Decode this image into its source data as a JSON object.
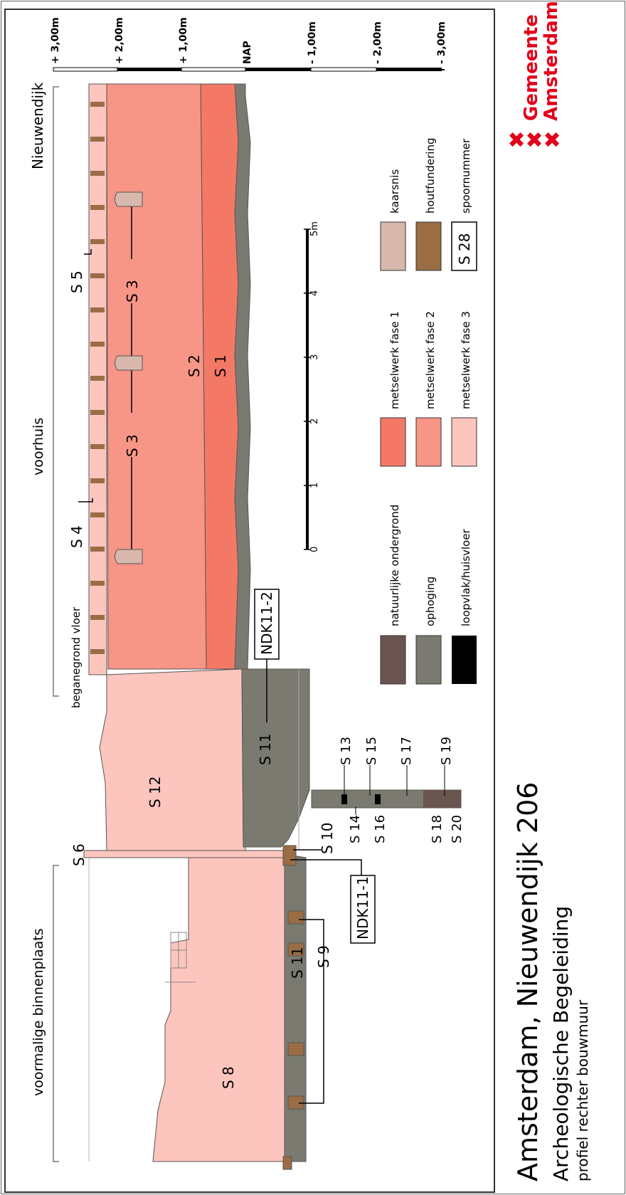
{
  "title": {
    "main": "Amsterdam, Nieuwendijk 206",
    "sub": "Archeologische Begeleiding",
    "caption": "profiel rechter bouwmuur"
  },
  "logo": {
    "line1": "Gemeente",
    "line2": "Amsterdam",
    "color": "#e2001a"
  },
  "height_scale": {
    "labels": [
      "+ 3,00m",
      "+ 2,00m",
      "+ 1,00m",
      "NAP",
      "- 1,00m",
      "- 2,00m",
      "- 3,00m"
    ]
  },
  "zones": {
    "nieuwendijk": "Nieuwendijk",
    "voorhuis": "voorhuis",
    "voormalige_binnenplaats": "voormalige binnenplaats",
    "beganegrond_vloer": "beganegrond vloer"
  },
  "tracks": {
    "s1": "S 1",
    "s2": "S 2",
    "s3a": "S 3",
    "s3b": "S 3",
    "s4": "S 4",
    "s5": "S 5",
    "s6": "S 6",
    "s8": "S 8",
    "s9": "S 9",
    "s10": "S 10",
    "s11a": "S 11",
    "s11b": "S 11",
    "s12": "S 12",
    "s13": "S 13",
    "s14": "S 14",
    "s15": "S 15",
    "s16": "S 16",
    "s17": "S 17",
    "s18": "S 18",
    "s19": "S 19",
    "s20": "S 20"
  },
  "samples": {
    "ndk1": "NDK11-1",
    "ndk2": "NDK11-2"
  },
  "scale_bar": {
    "ticks": [
      "0",
      "1",
      "2",
      "3",
      "4",
      "5m"
    ]
  },
  "legend": [
    {
      "label": "natuurlijke ondergrond",
      "color": "#6b5550"
    },
    {
      "label": "ophoging",
      "color": "#7b7a70"
    },
    {
      "label": "loopvlak/huisvloer",
      "color": "#000000"
    },
    {
      "label": "metselwerk fase 1",
      "color": "#f47866"
    },
    {
      "label": "metselwerk fase 2",
      "color": "#f79587"
    },
    {
      "label": "metselwerk fase 3",
      "color": "#fcc5be"
    },
    {
      "label": "kaarsnis",
      "color": "#d8b8ac"
    },
    {
      "label": "houtfundering",
      "color": "#9a6d45"
    },
    {
      "label": "spoornummer",
      "sample": "S 28"
    }
  ]
}
